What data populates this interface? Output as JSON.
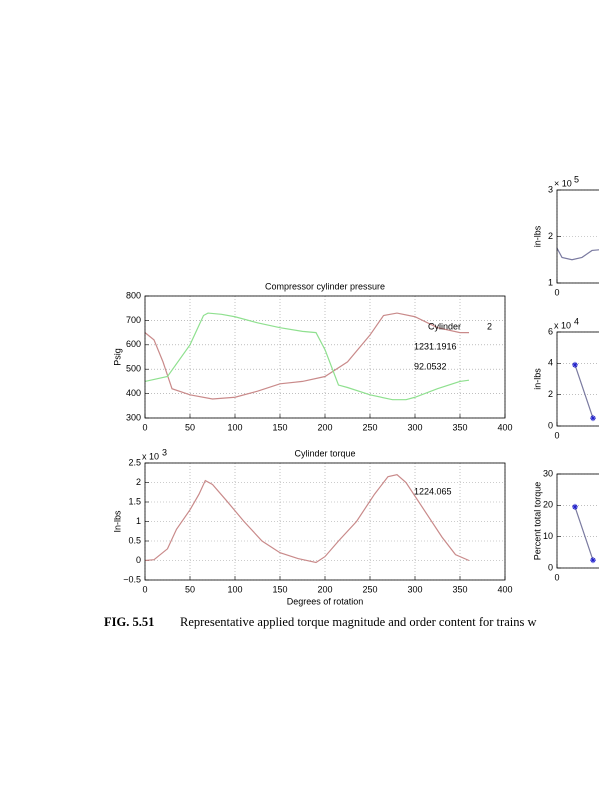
{
  "caption": {
    "label": "FIG. 5.51",
    "text": "Representative applied torque magnitude and order content for trains w"
  },
  "chart_data": [
    {
      "type": "line",
      "title": "Compressor cylinder pressure",
      "ylabel": "Psig",
      "xlim": [
        0,
        400
      ],
      "xticks": [
        0,
        50,
        100,
        150,
        200,
        250,
        300,
        350,
        400
      ],
      "ylim": [
        300,
        800
      ],
      "yticks": [
        300,
        400,
        500,
        600,
        700,
        800
      ],
      "grid": true,
      "series": [
        {
          "color": "#c98a8a",
          "x": [
            0,
            10,
            20,
            30,
            50,
            75,
            100,
            125,
            150,
            175,
            200,
            225,
            250,
            265,
            280,
            300,
            325,
            350,
            360
          ],
          "values": [
            650,
            620,
            530,
            420,
            395,
            378,
            385,
            410,
            440,
            450,
            470,
            530,
            640,
            720,
            730,
            715,
            670,
            650,
            650
          ]
        },
        {
          "color": "#8fe08f",
          "x": [
            0,
            25,
            50,
            65,
            70,
            85,
            100,
            125,
            150,
            175,
            190,
            200,
            215,
            225,
            250,
            275,
            290,
            300,
            325,
            350,
            360
          ],
          "values": [
            450,
            470,
            600,
            720,
            730,
            725,
            715,
            690,
            670,
            655,
            650,
            580,
            435,
            425,
            395,
            375,
            375,
            385,
            420,
            450,
            455
          ]
        }
      ],
      "annotations": [
        "Cylinder",
        "2",
        "1231.1916",
        "92.0532"
      ]
    },
    {
      "type": "line",
      "title": "Cylinder torque",
      "ylabel": "In-lbs",
      "xlabel": "Degrees of rotation",
      "scale_label": {
        "base": "x 10",
        "exponent": "3"
      },
      "xlim": [
        0,
        400
      ],
      "xticks": [
        0,
        50,
        100,
        150,
        200,
        250,
        300,
        350,
        400
      ],
      "ylim": [
        -0.5,
        2.5
      ],
      "yticks": [
        {
          "value": -0.5,
          "label": "−0.5"
        },
        0,
        0.5,
        1,
        1.5,
        2,
        2.5
      ],
      "grid": true,
      "series": [
        {
          "color": "#c98a8a",
          "x": [
            0,
            10,
            25,
            35,
            50,
            60,
            67,
            75,
            90,
            110,
            130,
            150,
            170,
            190,
            200,
            215,
            235,
            255,
            270,
            280,
            290,
            310,
            330,
            345,
            360
          ],
          "values": [
            0,
            0.02,
            0.3,
            0.8,
            1.3,
            1.7,
            2.05,
            1.95,
            1.55,
            1.0,
            0.5,
            0.2,
            0.05,
            -0.05,
            0.1,
            0.5,
            1.0,
            1.7,
            2.15,
            2.2,
            2.0,
            1.3,
            0.6,
            0.15,
            0
          ]
        }
      ],
      "annotations": [
        "1224.065"
      ]
    },
    {
      "type": "line",
      "ylabel": "in-lbs",
      "scale_label": {
        "base": "× 10",
        "exponent": "5"
      },
      "xlim": [
        0,
        360
      ],
      "xticks": [
        0
      ],
      "ylim": [
        1,
        3
      ],
      "yticks": [
        1,
        2,
        3
      ],
      "grid": true,
      "series": [
        {
          "color": "#7a7aa0",
          "x": [
            0,
            5,
            15,
            25,
            35,
            45
          ],
          "values": [
            1.75,
            1.55,
            1.5,
            1.55,
            1.7,
            1.72
          ]
        }
      ]
    },
    {
      "type": "line",
      "ylabel": "in-lbs",
      "scale_label": {
        "base": "x 10",
        "exponent": "4"
      },
      "xlim": [
        0,
        20
      ],
      "xticks": [
        0
      ],
      "ylim": [
        0,
        6
      ],
      "yticks": [
        0,
        2,
        4,
        6
      ],
      "grid": true,
      "marker": "star",
      "series": [
        {
          "color": "#7a7aa0",
          "marker_color": "#2222cc",
          "x": [
            1,
            2
          ],
          "values": [
            3.9,
            0.5
          ]
        }
      ]
    },
    {
      "type": "line",
      "ylabel": "Percent total torque",
      "xlim": [
        0,
        20
      ],
      "xticks": [
        0
      ],
      "ylim": [
        0,
        30
      ],
      "yticks": [
        0,
        10,
        20,
        30
      ],
      "grid": true,
      "marker": "star",
      "series": [
        {
          "color": "#7a7aa0",
          "marker_color": "#2222cc",
          "x": [
            1,
            2
          ],
          "values": [
            19.5,
            2.5
          ]
        }
      ]
    }
  ]
}
